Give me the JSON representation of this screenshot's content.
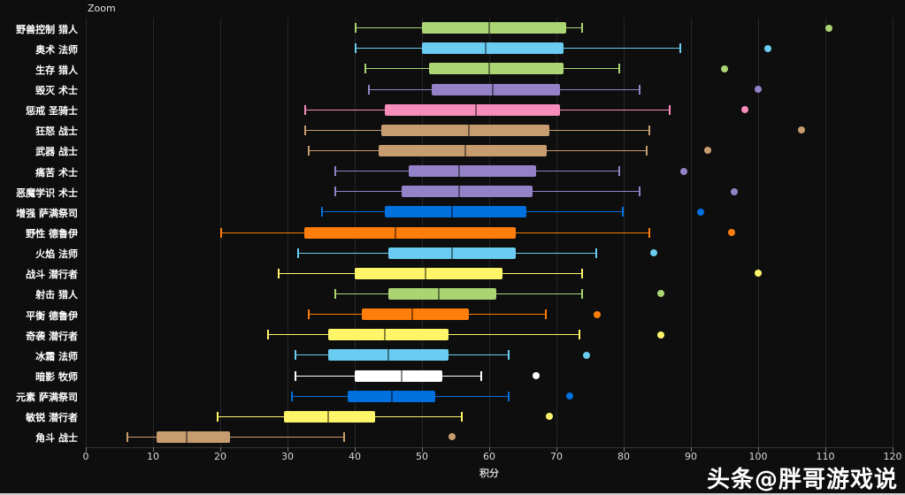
{
  "page": {
    "zoom_label": "Zoom",
    "watermark": "头条@胖哥游戏说",
    "background_color": "#0e0e0e"
  },
  "chart_data": {
    "type": "boxplot",
    "orientation": "horizontal",
    "xlabel": "积分",
    "xlim": [
      0,
      120
    ],
    "x_ticks": [
      0,
      10,
      20,
      30,
      40,
      50,
      60,
      70,
      80,
      90,
      100,
      110,
      120
    ],
    "grid": true,
    "rows": [
      {
        "label": "野兽控制 猎人",
        "color": "#ABD473",
        "low": 40,
        "q1": 50,
        "median": 60,
        "q3": 71.5,
        "high": 74,
        "outliers": [
          110.5
        ]
      },
      {
        "label": "奥术 法师",
        "color": "#69CCF0",
        "low": 40,
        "q1": 50,
        "median": 59.5,
        "q3": 71,
        "high": 88.5,
        "outliers": [
          101.5
        ]
      },
      {
        "label": "生存 猎人",
        "color": "#ABD473",
        "low": 41.5,
        "q1": 51,
        "median": 60,
        "q3": 71,
        "high": 79.5,
        "outliers": [
          95
        ]
      },
      {
        "label": "毁灭 术士",
        "color": "#9482C9",
        "low": 42,
        "q1": 51.5,
        "median": 60.5,
        "q3": 70.5,
        "high": 82.5,
        "outliers": [
          100
        ]
      },
      {
        "label": "惩戒 圣骑士",
        "color": "#F58CBA",
        "low": 32.5,
        "q1": 44.5,
        "median": 58,
        "q3": 70.5,
        "high": 87,
        "outliers": [
          98
        ]
      },
      {
        "label": "狂怒 战士",
        "color": "#C79C6E",
        "low": 32.5,
        "q1": 44,
        "median": 57,
        "q3": 69,
        "high": 84,
        "outliers": [
          106.5
        ]
      },
      {
        "label": "武器 战士",
        "color": "#C79C6E",
        "low": 33,
        "q1": 43.5,
        "median": 56.5,
        "q3": 68.5,
        "high": 83.5,
        "outliers": [
          92.5
        ]
      },
      {
        "label": "痛苦 术士",
        "color": "#9482C9",
        "low": 37,
        "q1": 48,
        "median": 55.5,
        "q3": 67,
        "high": 79.5,
        "outliers": [
          89
        ]
      },
      {
        "label": "恶魔学识 术士",
        "color": "#9482C9",
        "low": 37,
        "q1": 47,
        "median": 55.5,
        "q3": 66.5,
        "high": 82.5,
        "outliers": [
          96.5
        ]
      },
      {
        "label": "增强 萨满祭司",
        "color": "#0070DE",
        "low": 35,
        "q1": 44.5,
        "median": 54.5,
        "q3": 65.5,
        "high": 80,
        "outliers": [
          91.5
        ]
      },
      {
        "label": "野性 德鲁伊",
        "color": "#FF7D0A",
        "low": 20,
        "q1": 32.5,
        "median": 46,
        "q3": 64,
        "high": 84,
        "outliers": [
          96
        ]
      },
      {
        "label": "火焰 法师",
        "color": "#69CCF0",
        "low": 31.5,
        "q1": 45,
        "median": 54.5,
        "q3": 64,
        "high": 76,
        "outliers": [
          84.5
        ]
      },
      {
        "label": "战斗 潜行者",
        "color": "#FFF569",
        "low": 28.5,
        "q1": 40,
        "median": 50.5,
        "q3": 62,
        "high": 74,
        "outliers": [
          100
        ]
      },
      {
        "label": "射击 猎人",
        "color": "#ABD473",
        "low": 37,
        "q1": 45,
        "median": 52.5,
        "q3": 61,
        "high": 74,
        "outliers": [
          85.5
        ]
      },
      {
        "label": "平衡 德鲁伊",
        "color": "#FF7D0A",
        "low": 33,
        "q1": 41,
        "median": 48.5,
        "q3": 57,
        "high": 68.5,
        "outliers": [
          76
        ]
      },
      {
        "label": "奇袭 潜行者",
        "color": "#FFF569",
        "low": 27,
        "q1": 36,
        "median": 44.5,
        "q3": 54,
        "high": 73.5,
        "outliers": [
          85.5
        ]
      },
      {
        "label": "冰霜 法师",
        "color": "#69CCF0",
        "low": 31,
        "q1": 36,
        "median": 45,
        "q3": 54,
        "high": 63,
        "outliers": [
          74.5
        ]
      },
      {
        "label": "暗影 牧师",
        "color": "#FFFFFF",
        "low": 31,
        "q1": 40,
        "median": 47,
        "q3": 53,
        "high": 59,
        "outliers": [
          67
        ]
      },
      {
        "label": "元素 萨满祭司",
        "color": "#0070DE",
        "low": 30.5,
        "q1": 39,
        "median": 45.5,
        "q3": 52,
        "high": 63,
        "outliers": [
          72
        ]
      },
      {
        "label": "敏锐 潜行者",
        "color": "#FFF569",
        "low": 19.5,
        "q1": 29.5,
        "median": 36,
        "q3": 43,
        "high": 56,
        "outliers": [
          69
        ]
      },
      {
        "label": "角斗 战士",
        "color": "#C79C6E",
        "low": 6,
        "q1": 10.5,
        "median": 15,
        "q3": 21.5,
        "high": 38.5,
        "outliers": [
          54.5
        ]
      }
    ]
  }
}
